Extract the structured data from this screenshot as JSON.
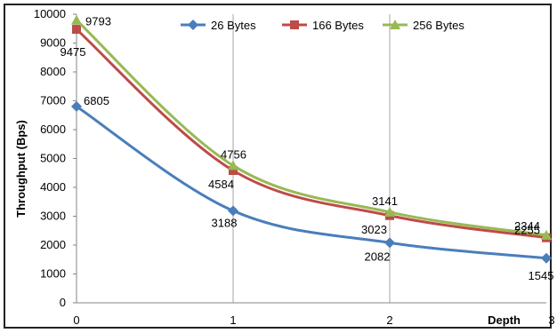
{
  "chart_data": {
    "type": "line",
    "title": "",
    "xlabel": "Depth",
    "ylabel": "Throughput (Bps)",
    "x": [
      0,
      1,
      2,
      3
    ],
    "xlim": [
      0,
      3
    ],
    "ylim": [
      0,
      10000
    ],
    "yticks": [
      0,
      1000,
      2000,
      3000,
      4000,
      5000,
      6000,
      7000,
      8000,
      9000,
      10000
    ],
    "xticks": [
      "0",
      "1",
      "2",
      "3"
    ],
    "grid": "vertical",
    "legend_position": "top-center",
    "series": [
      {
        "name": "26 Bytes",
        "color": "#4a7ebb",
        "marker": "diamond",
        "values": [
          6805,
          3188,
          2082,
          1545
        ]
      },
      {
        "name": "166 Bytes",
        "color": "#be4b48",
        "marker": "square",
        "values": [
          9475,
          4584,
          3023,
          2255
        ]
      },
      {
        "name": "256 Bytes",
        "color": "#98b954",
        "marker": "triangle",
        "values": [
          9793,
          4756,
          3141,
          2344
        ]
      }
    ]
  }
}
